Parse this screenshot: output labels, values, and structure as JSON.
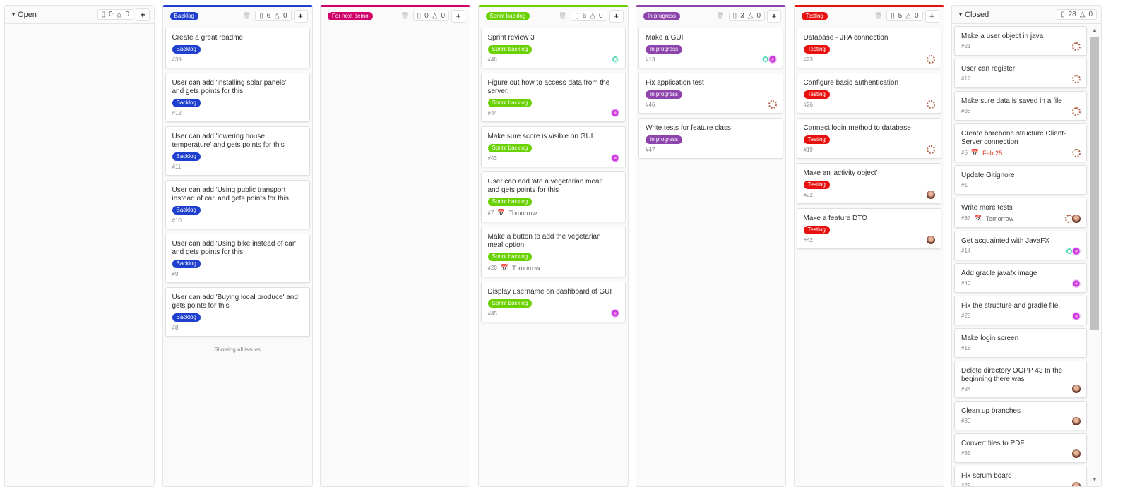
{
  "colors": {
    "backlog": "#1f3fcf",
    "demo": "#d10069",
    "sprint": "#69d100",
    "progress": "#8e44ad",
    "testing": "#e8110f"
  },
  "columns": [
    {
      "title": "Open",
      "type": "plain",
      "issues": "0",
      "weight": "0",
      "cards": []
    },
    {
      "title": "Backlog",
      "type": "label",
      "color": "#1f3fcf",
      "issues": "6",
      "weight": "0",
      "footer": "Showing all issues",
      "cards": [
        {
          "title": "Create a great readme",
          "label": "Backlog",
          "id": "#39"
        },
        {
          "title": "User can add 'installing solar panels' and gets points for this",
          "label": "Backlog",
          "id": "#12"
        },
        {
          "title": "User can add 'lowering house temperature' and gets points for this",
          "label": "Backlog",
          "id": "#11"
        },
        {
          "title": "User can add 'Using public transport instead of car' and gets points for this",
          "label": "Backlog",
          "id": "#10"
        },
        {
          "title": "User can add 'Using bike instead of car' and gets points for this",
          "label": "Backlog",
          "id": "#9"
        },
        {
          "title": "User can add 'Buying local produce' and gets points for this",
          "label": "Backlog",
          "id": "#8"
        }
      ]
    },
    {
      "title": "For next demo",
      "type": "label",
      "color": "#d10069",
      "issues": "0",
      "weight": "0",
      "cards": []
    },
    {
      "title": "Sprint backlog",
      "type": "label",
      "color": "#69d100",
      "issues": "6",
      "weight": "0",
      "cards": [
        {
          "title": "Sprint review 3",
          "label": "Sprint backlog",
          "id": "#48",
          "avatars": [
            "teal"
          ]
        },
        {
          "title": "Figure out how to access data from the server.",
          "label": "Sprint backlog",
          "id": "#44",
          "avatars": [
            "magenta"
          ]
        },
        {
          "title": "Make sure score is visible on GUI",
          "label": "Sprint backlog",
          "id": "#43",
          "avatars": [
            "magenta"
          ]
        },
        {
          "title": "User can add 'ate a vegetarian meal' and gets points for this",
          "label": "Sprint backlog",
          "id": "#7",
          "due": "Tomorrow"
        },
        {
          "title": "Make a button to add the vegetarian meal option",
          "label": "Sprint backlog",
          "id": "#20",
          "due": "Tomorrow"
        },
        {
          "title": "Display username on dashboard of GUI",
          "label": "Sprint backlog",
          "id": "#45",
          "avatars": [
            "magenta"
          ]
        }
      ]
    },
    {
      "title": "In progress",
      "type": "label",
      "color": "#8e44ad",
      "issues": "3",
      "weight": "0",
      "cards": [
        {
          "title": "Make a GUI",
          "label": "In progress",
          "id": "#13",
          "avatars": [
            "teal",
            "magenta"
          ]
        },
        {
          "title": "Fix application test",
          "label": "In progress",
          "id": "#46",
          "avatars": [
            "ring"
          ]
        },
        {
          "title": "Write tests for feature class",
          "label": "In progress",
          "id": "#47"
        }
      ]
    },
    {
      "title": "Testing",
      "type": "label",
      "color": "#e8110f",
      "issues": "5",
      "weight": "0",
      "cards": [
        {
          "title": "Database - JPA connection",
          "label": "Testing",
          "id": "#23",
          "avatars": [
            "ring"
          ]
        },
        {
          "title": "Configure basic authentication",
          "label": "Testing",
          "id": "#26",
          "avatars": [
            "ring"
          ]
        },
        {
          "title": "Connect login method to database",
          "label": "Testing",
          "id": "#19",
          "avatars": [
            "ring"
          ]
        },
        {
          "title": "Make an 'activity object'",
          "label": "Testing",
          "id": "#22",
          "avatars": [
            "photo"
          ]
        },
        {
          "title": "Make a feature DTO",
          "label": "Testing",
          "id": "#42",
          "avatars": [
            "photo"
          ]
        }
      ]
    },
    {
      "title": "Closed",
      "type": "plain",
      "issues": "28",
      "weight": "0",
      "closed": true,
      "cards": [
        {
          "title": "Make a user object in java",
          "id": "#21",
          "avatars": [
            "ring"
          ]
        },
        {
          "title": "User can register",
          "id": "#17",
          "avatars": [
            "ring"
          ]
        },
        {
          "title": "Make sure data is saved in a file",
          "id": "#38",
          "avatars": [
            "ring"
          ]
        },
        {
          "title": "Create barebone structure Client-Server connection",
          "id": "#5",
          "due": "Feb 25",
          "overdue": true,
          "avatars": [
            "ring"
          ]
        },
        {
          "title": "Update Gitignore",
          "id": "#1"
        },
        {
          "title": "Write more tests",
          "id": "#37",
          "due": "Tomorrow",
          "avatars": [
            "ring",
            "photo"
          ]
        },
        {
          "title": "Get acquainted with JavaFX",
          "id": "#14",
          "avatars": [
            "teal",
            "magenta"
          ]
        },
        {
          "title": "Add gradle javafx image",
          "id": "#40",
          "avatars": [
            "magenta"
          ]
        },
        {
          "title": "Fix the structure and gradle file.",
          "id": "#28",
          "avatars": [
            "magenta"
          ]
        },
        {
          "title": "Make login screen",
          "id": "#18"
        },
        {
          "title": "Delete directory OOPP 43 In the beginning there was",
          "id": "#34",
          "avatars": [
            "photo"
          ]
        },
        {
          "title": "Clean up branches",
          "id": "#30",
          "avatars": [
            "photo"
          ]
        },
        {
          "title": "Convert files to PDF",
          "id": "#35",
          "avatars": [
            "photo"
          ]
        },
        {
          "title": "Fix scrum board",
          "id": "#29",
          "avatars": [
            "photo"
          ]
        }
      ]
    }
  ]
}
